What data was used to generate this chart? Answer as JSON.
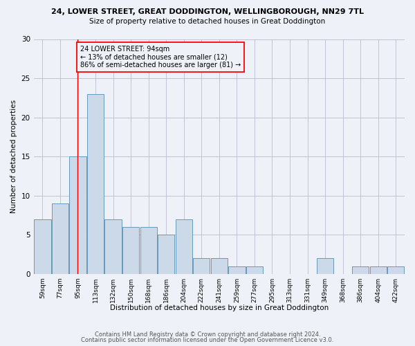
{
  "title_line1": "24, LOWER STREET, GREAT DODDINGTON, WELLINGBOROUGH, NN29 7TL",
  "title_line2": "Size of property relative to detached houses in Great Doddington",
  "xlabel": "Distribution of detached houses by size in Great Doddington",
  "ylabel": "Number of detached properties",
  "categories": [
    "59sqm",
    "77sqm",
    "95sqm",
    "113sqm",
    "132sqm",
    "150sqm",
    "168sqm",
    "186sqm",
    "204sqm",
    "222sqm",
    "241sqm",
    "259sqm",
    "277sqm",
    "295sqm",
    "313sqm",
    "331sqm",
    "349sqm",
    "368sqm",
    "386sqm",
    "404sqm",
    "422sqm"
  ],
  "values": [
    7,
    9,
    15,
    23,
    7,
    6,
    6,
    5,
    7,
    2,
    2,
    1,
    1,
    0,
    0,
    0,
    2,
    0,
    1,
    1,
    1
  ],
  "bar_color": "#ccd9e8",
  "bar_edge_color": "#6699bb",
  "grid_color": "#bbbbcc",
  "bg_color": "#eef2f8",
  "annotation_title": "24 LOWER STREET: 94sqm",
  "annotation_line1": "← 13% of detached houses are smaller (12)",
  "annotation_line2": "86% of semi-detached houses are larger (81) →",
  "footer_line1": "Contains HM Land Registry data © Crown copyright and database right 2024.",
  "footer_line2": "Contains public sector information licensed under the Open Government Licence v3.0.",
  "ylim": [
    0,
    30
  ],
  "red_line_index": 1.97
}
